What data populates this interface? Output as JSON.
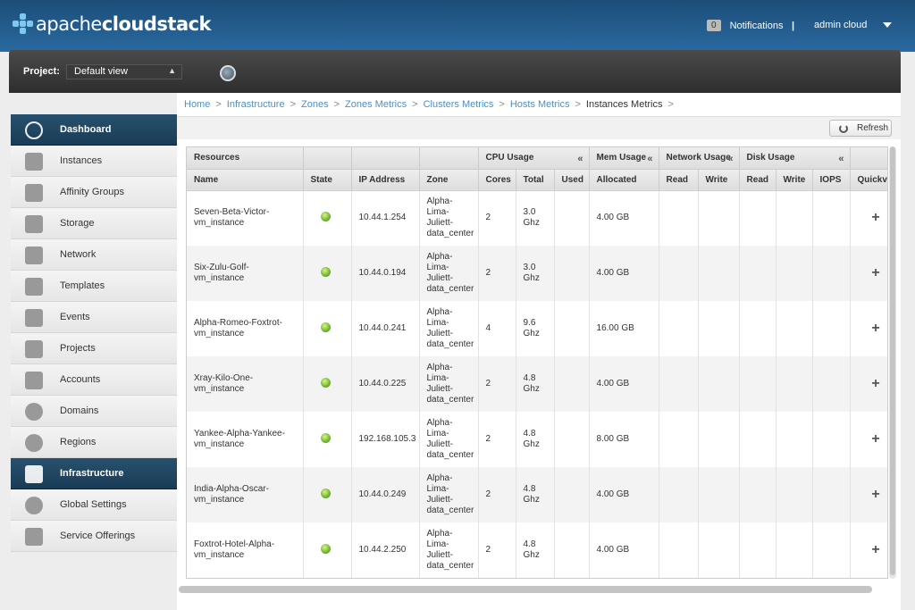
{
  "header": {
    "logo_brand": "apache",
    "logo_product": "cloudstack",
    "notifications_count": "0",
    "notifications_label": "Notifications",
    "separator": "|",
    "user_label": "admin cloud"
  },
  "project": {
    "label": "Project:",
    "selected": "Default view"
  },
  "sidebar": {
    "items": [
      {
        "label": "Dashboard",
        "icon": "dashboard-icon",
        "active": true
      },
      {
        "label": "Instances",
        "icon": "cloud-icon",
        "active": false
      },
      {
        "label": "Affinity Groups",
        "icon": "affinity-icon",
        "active": false
      },
      {
        "label": "Storage",
        "icon": "storage-icon",
        "active": false
      },
      {
        "label": "Network",
        "icon": "network-icon",
        "active": false
      },
      {
        "label": "Templates",
        "icon": "templates-icon",
        "active": false
      },
      {
        "label": "Events",
        "icon": "calendar-icon",
        "active": false
      },
      {
        "label": "Projects",
        "icon": "folder-icon",
        "active": false
      },
      {
        "label": "Accounts",
        "icon": "user-icon",
        "active": false
      },
      {
        "label": "Domains",
        "icon": "domains-icon",
        "active": false
      },
      {
        "label": "Regions",
        "icon": "globe-icon",
        "active": false
      },
      {
        "label": "Infrastructure",
        "icon": "infrastructure-icon",
        "active": true
      },
      {
        "label": "Global Settings",
        "icon": "global-settings-icon",
        "active": false
      },
      {
        "label": "Service Offerings",
        "icon": "gear-icon",
        "active": false
      }
    ]
  },
  "breadcrumb": {
    "links": [
      "Home",
      "Infrastructure",
      "Zones",
      "Zones Metrics",
      "Clusters Metrics",
      "Hosts Metrics"
    ],
    "current": "Instances Metrics",
    "separator": ">"
  },
  "toolbar": {
    "refresh_label": "Refresh"
  },
  "table": {
    "group_headers": {
      "resources": "Resources",
      "cpu": "CPU Usage",
      "mem": "Mem Usage",
      "network": "Network Usage",
      "disk": "Disk Usage",
      "collapse": "«"
    },
    "columns": [
      "Name",
      "State",
      "IP Address",
      "Zone",
      "Cores",
      "Total",
      "Used",
      "Allocated",
      "Read",
      "Write",
      "Read",
      "Write",
      "IOPS",
      "Quickview"
    ],
    "rows": [
      {
        "name": [
          "Seven-Beta-Victor-",
          "vm_instance"
        ],
        "ip": "10.44.1.254",
        "zone": [
          "Alpha-",
          "Lima-",
          "Juliett-",
          "data_center"
        ],
        "cores": "2",
        "total": [
          "3.0",
          "Ghz"
        ],
        "allocated": "4.00 GB"
      },
      {
        "name": [
          "Six-Zulu-Golf-vm_instance"
        ],
        "ip": "10.44.0.194",
        "zone": [
          "Alpha-",
          "Lima-",
          "Juliett-",
          "data_center"
        ],
        "cores": "2",
        "total": [
          "3.0",
          "Ghz"
        ],
        "allocated": "4.00 GB"
      },
      {
        "name": [
          "Alpha-Romeo-Foxtrot-",
          "vm_instance"
        ],
        "ip": "10.44.0.241",
        "zone": [
          "Alpha-",
          "Lima-",
          "Juliett-",
          "data_center"
        ],
        "cores": "4",
        "total": [
          "9.6",
          "Ghz"
        ],
        "allocated": "16.00 GB"
      },
      {
        "name": [
          "Xray-Kilo-One-",
          "vm_instance"
        ],
        "ip": "10.44.0.225",
        "zone": [
          "Alpha-",
          "Lima-",
          "Juliett-",
          "data_center"
        ],
        "cores": "2",
        "total": [
          "4.8",
          "Ghz"
        ],
        "allocated": "4.00 GB"
      },
      {
        "name": [
          "Yankee-Alpha-Yankee-",
          "vm_instance"
        ],
        "ip": "192.168.105.3",
        "zone": [
          "Alpha-",
          "Lima-",
          "Juliett-",
          "data_center"
        ],
        "cores": "2",
        "total": [
          "4.8",
          "Ghz"
        ],
        "allocated": "8.00 GB"
      },
      {
        "name": [
          "India-Alpha-Oscar-",
          "vm_instance"
        ],
        "ip": "10.44.0.249",
        "zone": [
          "Alpha-",
          "Lima-",
          "Juliett-",
          "data_center"
        ],
        "cores": "2",
        "total": [
          "4.8",
          "Ghz"
        ],
        "allocated": "4.00 GB"
      },
      {
        "name": [
          "Foxtrot-Hotel-Alpha-",
          "vm_instance"
        ],
        "ip": "10.44.2.250",
        "zone": [
          "Alpha-",
          "Lima-",
          "Juliett-",
          "data_center"
        ],
        "cores": "2",
        "total": [
          "4.8",
          "Ghz"
        ],
        "allocated": "4.00 GB"
      }
    ],
    "state_status": "running",
    "quickview_symbol": "+"
  },
  "colors": {
    "header_bg": "#2a6aa0",
    "active_nav": "#1a3c55",
    "link": "#4a90c8",
    "state_green": "#6fb52a"
  }
}
